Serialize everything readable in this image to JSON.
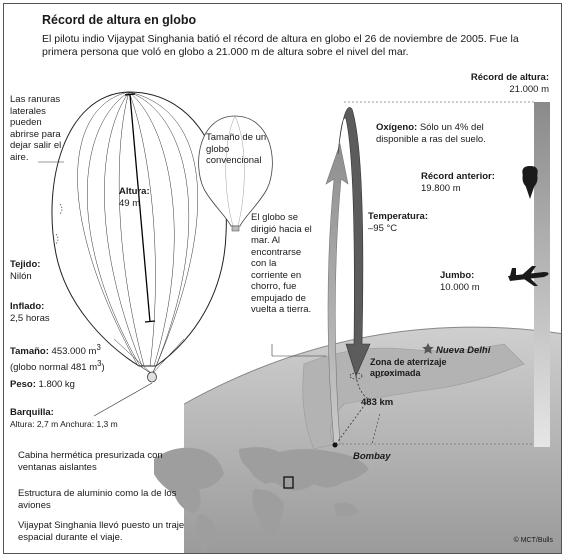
{
  "title": "Récord de altura en globo",
  "intro": "El pilotu indio Vijaypat Singhania batió el récord de altura en globo el 26 de noviembre de 2005. Fue la primera persona que voló en globo a 21.000 m de altura sobre el nivel del mar.",
  "balloon": {
    "vents_note": "Las ranuras laterales pueden abrirse para dejar salir el aire.",
    "conventional": "Tamaño de un globo convencional",
    "height_label": "Altura:",
    "height_value": "49 m"
  },
  "specs": {
    "fabric_label": "Tejido:",
    "fabric_value": "Nilón",
    "inflation_label": "Inflado:",
    "inflation_value": "2,5 horas",
    "size_label": "Tamaño:",
    "size_value": "453.000 m",
    "size_note": "(globo normal 481 m",
    "weight_label": "Peso:",
    "weight_value": "1.800 kg",
    "gondola_label": "Barquilla:",
    "gondola_value": "Altura: 2,7 m  Anchura: 1,3 m"
  },
  "flight_note": "El globo se dirigió hacia el mar. Al encontrarse con la corriente en chorro, fue empujado de vuelta a tierra.",
  "altitude": {
    "record_label": "Récord de altura:",
    "record_value": "21.000 m",
    "oxygen_label": "Oxígeno:",
    "oxygen_value": "Sólo un 4% del disponible a ras del suelo.",
    "previous_label": "Récord anterior:",
    "previous_value": "19.800 m",
    "temp_label": "Temperatura:",
    "temp_value": "–95 °C",
    "jumbo_label": "Jumbo:",
    "jumbo_value": "10.000 m"
  },
  "map": {
    "delhi": "Nueva Delhi",
    "landing": "Zona de aterrizaje aproximada",
    "distance": "483 km",
    "bombay": "Bombay"
  },
  "notes": {
    "cabin": "Cabina hermética presurizada con ventanas aislantes",
    "structure": "Estructura de aluminio como la de los aviones",
    "suit": "Vijaypat Singhania llevó puesto un traje espacial durante el viaje."
  },
  "credit": "© MCT/Bulls"
}
